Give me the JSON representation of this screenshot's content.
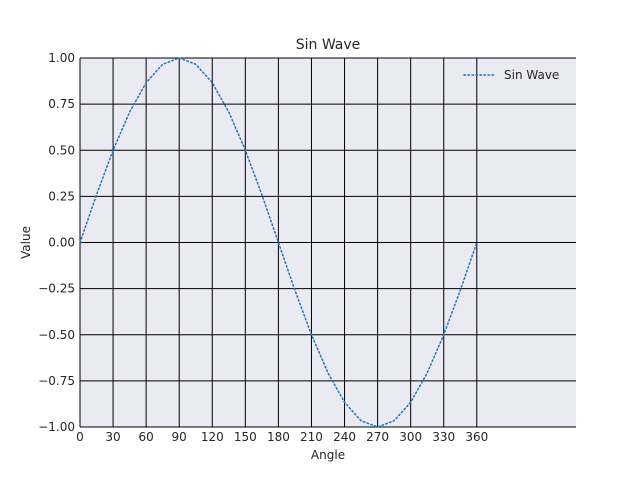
{
  "chart_data": {
    "type": "line",
    "title": "Sin Wave",
    "xlabel": "Angle",
    "ylabel": "Value",
    "xlim": [
      0,
      450
    ],
    "ylim": [
      -1.0,
      1.0
    ],
    "xticks": [
      0,
      30,
      60,
      90,
      120,
      150,
      180,
      210,
      240,
      270,
      300,
      330,
      360
    ],
    "xtick_labels": [
      "0",
      "30",
      "60",
      "90",
      "120",
      "150",
      "180",
      "210",
      "240",
      "270",
      "300",
      "330",
      "360"
    ],
    "yticks": [
      -1.0,
      -0.75,
      -0.5,
      -0.25,
      0.0,
      0.25,
      0.5,
      0.75,
      1.0
    ],
    "ytick_labels": [
      "−1.00",
      "−0.75",
      "−0.50",
      "−0.25",
      "0.00",
      "0.25",
      "0.50",
      "0.75",
      "1.00"
    ],
    "grid": true,
    "legend_position": "top-right",
    "plot_background": "#eaeaf2",
    "grid_color": "#000000",
    "series": [
      {
        "name": "Sin Wave",
        "color": "#1f77b4",
        "line_style": "dotted",
        "x": [
          0,
          15,
          30,
          45,
          60,
          75,
          90,
          105,
          120,
          135,
          150,
          165,
          180,
          195,
          210,
          225,
          240,
          255,
          270,
          285,
          300,
          315,
          330,
          345,
          360
        ],
        "y": [
          0,
          0.259,
          0.5,
          0.707,
          0.866,
          0.966,
          1.0,
          0.966,
          0.866,
          0.707,
          0.5,
          0.259,
          0,
          -0.259,
          -0.5,
          -0.707,
          -0.866,
          -0.966,
          -1.0,
          -0.966,
          -0.866,
          -0.707,
          -0.5,
          -0.259,
          0
        ]
      }
    ]
  }
}
